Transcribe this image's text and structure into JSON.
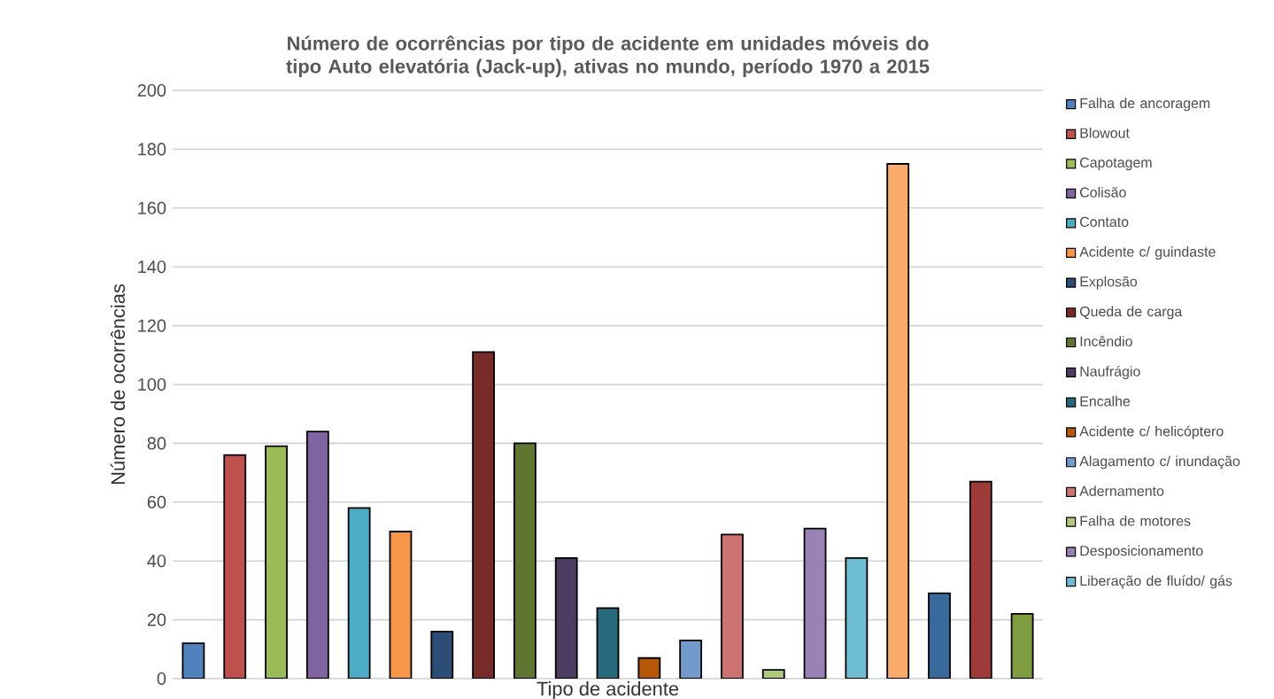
{
  "chart_data": {
    "type": "bar",
    "title": "Número de ocorrências por tipo de acidente em unidades móveis do tipo Auto elevatória (Jack-up), ativas no mundo, período 1970 a 2015",
    "xlabel": "Tipo de acidente",
    "ylabel": "Número de ocorrências",
    "categories": [
      null,
      null,
      null,
      null,
      null,
      null,
      null,
      null,
      null,
      null,
      null,
      null,
      null,
      null,
      null,
      null,
      null,
      null,
      null,
      null,
      null
    ],
    "series": [
      {
        "name": "Falha de ancoragem",
        "color": "#4f81bd",
        "values": [
          12,
          null,
          null,
          null,
          null,
          null,
          null,
          null,
          null,
          null,
          null,
          null,
          null,
          null,
          null,
          null,
          null,
          null,
          null,
          null,
          null
        ]
      },
      {
        "name": "Blowout",
        "color": "#c0504d",
        "values": [
          null,
          76,
          null,
          null,
          null,
          null,
          null,
          null,
          null,
          null,
          null,
          null,
          null,
          null,
          null,
          null,
          null,
          null,
          null,
          null,
          null
        ]
      },
      {
        "name": "Capotagem",
        "color": "#9bbb59",
        "values": [
          null,
          null,
          79,
          null,
          null,
          null,
          null,
          null,
          null,
          null,
          null,
          null,
          null,
          null,
          null,
          null,
          null,
          null,
          null,
          null,
          null
        ]
      },
      {
        "name": "Colisão",
        "color": "#8064a2",
        "values": [
          null,
          null,
          null,
          84,
          null,
          null,
          null,
          null,
          null,
          null,
          null,
          null,
          null,
          null,
          null,
          null,
          null,
          null,
          null,
          null,
          null
        ]
      },
      {
        "name": "Contato",
        "color": "#4bacc6",
        "values": [
          null,
          null,
          null,
          null,
          58,
          null,
          null,
          null,
          null,
          null,
          null,
          null,
          null,
          null,
          null,
          null,
          null,
          null,
          null,
          null,
          null
        ]
      },
      {
        "name": "Acidente c/ guindaste",
        "color": "#f79646",
        "values": [
          null,
          null,
          null,
          null,
          null,
          50,
          null,
          null,
          null,
          null,
          null,
          null,
          null,
          null,
          null,
          null,
          null,
          null,
          null,
          null,
          null
        ]
      },
      {
        "name": "Explosão",
        "color": "#2c4d75",
        "values": [
          null,
          null,
          null,
          null,
          null,
          null,
          16,
          null,
          null,
          null,
          null,
          null,
          null,
          null,
          null,
          null,
          null,
          null,
          null,
          null,
          null
        ]
      },
      {
        "name": "Queda de carga",
        "color": "#772c2a",
        "values": [
          null,
          null,
          null,
          null,
          null,
          null,
          null,
          111,
          null,
          null,
          null,
          null,
          null,
          null,
          null,
          null,
          null,
          null,
          null,
          null,
          null
        ]
      },
      {
        "name": "Incêndio",
        "color": "#5f7530",
        "values": [
          null,
          null,
          null,
          null,
          null,
          null,
          null,
          null,
          80,
          null,
          null,
          null,
          null,
          null,
          null,
          null,
          null,
          null,
          null,
          null,
          null
        ]
      },
      {
        "name": "Naufrágio",
        "color": "#4d3b62",
        "values": [
          null,
          null,
          null,
          null,
          null,
          null,
          null,
          null,
          null,
          41,
          null,
          null,
          null,
          null,
          null,
          null,
          null,
          null,
          null,
          null,
          null
        ]
      },
      {
        "name": "Encalhe",
        "color": "#276a7c",
        "values": [
          null,
          null,
          null,
          null,
          null,
          null,
          null,
          null,
          null,
          null,
          24,
          null,
          null,
          null,
          null,
          null,
          null,
          null,
          null,
          null,
          null
        ]
      },
      {
        "name": "Acidente c/ helicóptero",
        "color": "#b65708",
        "values": [
          null,
          null,
          null,
          null,
          null,
          null,
          null,
          null,
          null,
          null,
          null,
          7,
          null,
          null,
          null,
          null,
          null,
          null,
          null,
          null,
          null
        ]
      },
      {
        "name": "Alagamento c/ inundação",
        "color": "#729aca",
        "values": [
          null,
          null,
          null,
          null,
          null,
          null,
          null,
          null,
          null,
          null,
          null,
          null,
          13,
          null,
          null,
          null,
          null,
          null,
          null,
          null,
          null
        ]
      },
      {
        "name": "Adernamento",
        "color": "#cd7371",
        "values": [
          null,
          null,
          null,
          null,
          null,
          null,
          null,
          null,
          null,
          null,
          null,
          null,
          null,
          49,
          null,
          null,
          null,
          null,
          null,
          null,
          null
        ]
      },
      {
        "name": "Falha de motores",
        "color": "#afc97a",
        "values": [
          null,
          null,
          null,
          null,
          null,
          null,
          null,
          null,
          null,
          null,
          null,
          null,
          null,
          null,
          3,
          null,
          null,
          null,
          null,
          null,
          null
        ]
      },
      {
        "name": "Desposicionamento",
        "color": "#9983b5",
        "values": [
          null,
          null,
          null,
          null,
          null,
          null,
          null,
          null,
          null,
          null,
          null,
          null,
          null,
          null,
          null,
          51,
          null,
          null,
          null,
          null,
          null
        ]
      },
      {
        "name": "Liberação de fluído/ gás",
        "color": "#6fbdd1",
        "values": [
          null,
          null,
          null,
          null,
          null,
          null,
          null,
          null,
          null,
          null,
          null,
          null,
          null,
          null,
          null,
          null,
          41,
          null,
          null,
          null,
          null
        ]
      },
      {
        "color": "#f9ab6b",
        "values": [
          null,
          null,
          null,
          null,
          null,
          null,
          null,
          null,
          null,
          null,
          null,
          null,
          null,
          null,
          null,
          null,
          null,
          175,
          null,
          null,
          null
        ]
      },
      {
        "color": "#3a6a9c",
        "values": [
          null,
          null,
          null,
          null,
          null,
          null,
          null,
          null,
          null,
          null,
          null,
          null,
          null,
          null,
          null,
          null,
          null,
          null,
          29,
          null,
          null
        ]
      },
      {
        "color": "#9e3b39",
        "values": [
          null,
          null,
          null,
          null,
          null,
          null,
          null,
          null,
          null,
          null,
          null,
          null,
          null,
          null,
          null,
          null,
          null,
          null,
          null,
          67,
          null
        ]
      },
      {
        "color": "#7f9d40",
        "values": [
          null,
          null,
          null,
          null,
          null,
          null,
          null,
          null,
          null,
          null,
          null,
          null,
          null,
          null,
          null,
          null,
          null,
          null,
          null,
          null,
          22
        ]
      }
    ],
    "ylim": [
      0,
      200
    ],
    "yticks": [
      0,
      20,
      40,
      60,
      80,
      100,
      120,
      140,
      160,
      180,
      200
    ],
    "grid": "y",
    "legend": "right"
  }
}
